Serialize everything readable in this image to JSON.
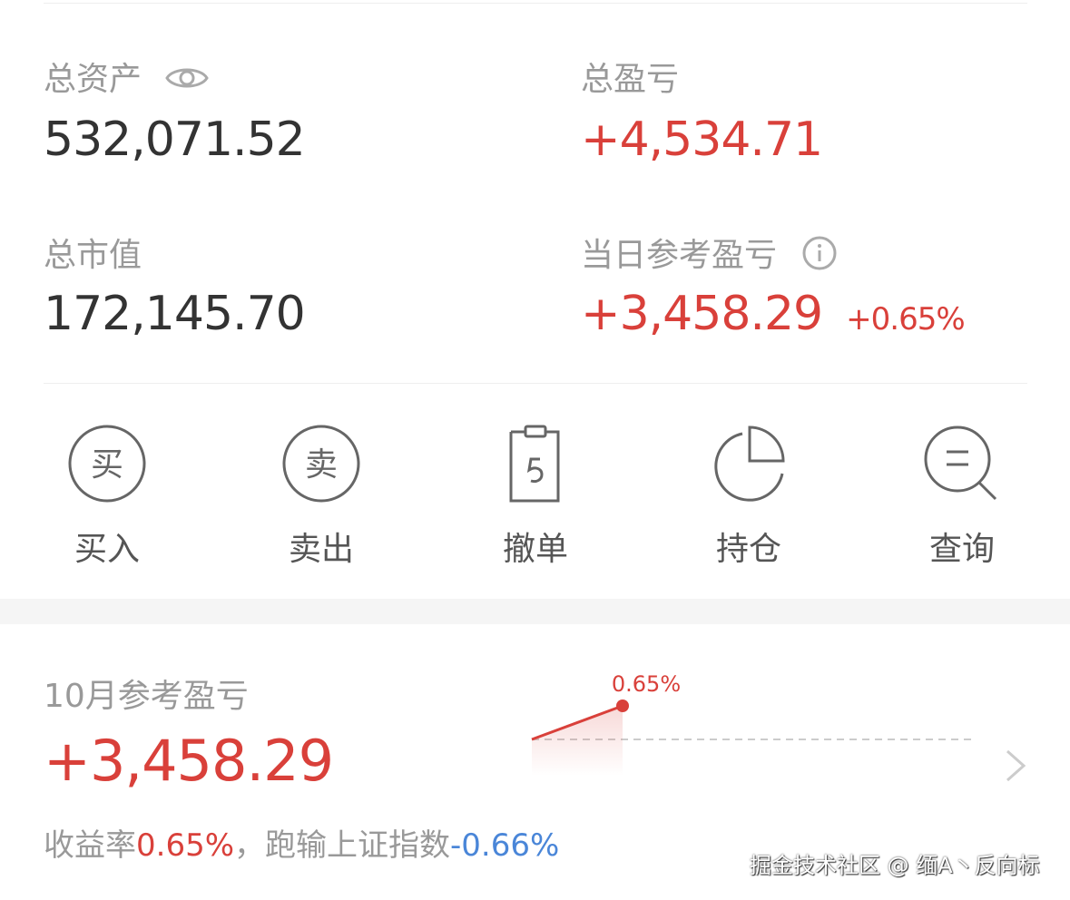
{
  "summary": {
    "total_assets_label": "总资产",
    "total_assets": "532,071.52",
    "total_pl_label": "总盈亏",
    "total_pl": "+4,534.71",
    "market_value_label": "总市值",
    "market_value": "172,145.70",
    "daily_pl_label": "当日参考盈亏",
    "daily_pl": "+3,458.29",
    "daily_pl_pct": "+0.65%"
  },
  "actions": [
    {
      "label": "买入",
      "glyph": "买",
      "icon": "buy-icon"
    },
    {
      "label": "卖出",
      "glyph": "卖",
      "icon": "sell-icon"
    },
    {
      "label": "撤单",
      "icon": "cancel-order-icon"
    },
    {
      "label": "持仓",
      "icon": "pie-chart-icon"
    },
    {
      "label": "查询",
      "icon": "search-icon"
    }
  ],
  "monthly": {
    "label": "10月参考盈亏",
    "value": "+3,458.29",
    "rate_label": "收益率",
    "rate": "0.65%",
    "sep": "，跑输上证指数",
    "index_diff": "-0.66%"
  },
  "chart_data": {
    "type": "line",
    "values": [
      0,
      0.65
    ],
    "point_label": "0.65%",
    "baseline": 0,
    "color": "#d9403a"
  },
  "watermark": "掘金技术社区 @ 缅A丶反向标",
  "colors": {
    "red": "#d9403a",
    "blue": "#4a86d8",
    "gray": "#999999"
  }
}
